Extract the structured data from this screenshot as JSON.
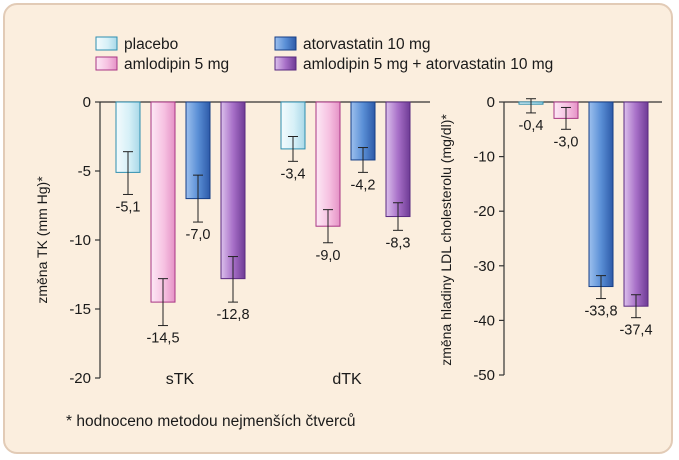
{
  "legend": [
    {
      "name": "placebo",
      "fill": "#d9f2f8",
      "edge": "#2d8fb0"
    },
    {
      "name": "atorvastatin 10 mg",
      "fill": "#5b8fd8",
      "edge": "#163f87"
    },
    {
      "name": "amlodipin 5 mg",
      "fill": "#f7c4e4",
      "edge": "#a83584"
    },
    {
      "name": "amlodipin 5 mg + atorvastatin 10 mg",
      "fill": "#a870c8",
      "edge": "#5a2a80"
    }
  ],
  "footnote": "* hodnoceno metodou nejmenších čtverců",
  "chart_data": [
    {
      "type": "bar",
      "ylabel": "změna TK (mm Hg)*",
      "ylim": [
        -20,
        0
      ],
      "yticks": [
        "0",
        "-5",
        "-10",
        "-15",
        "-20"
      ],
      "categories": [
        "sTK",
        "dTK"
      ],
      "series": [
        {
          "name": "placebo",
          "values": [
            -5.1,
            -3.4
          ],
          "labels": [
            "-5,1",
            "-3,4"
          ],
          "err_low": [
            -6.7,
            -4.3
          ],
          "err_high": [
            -3.6,
            -2.5
          ]
        },
        {
          "name": "amlodipin 5 mg",
          "values": [
            -14.5,
            -9.0
          ],
          "labels": [
            "-14,5",
            "-9,0"
          ],
          "err_low": [
            -16.2,
            -10.2
          ],
          "err_high": [
            -12.8,
            -7.8
          ]
        },
        {
          "name": "atorvastatin 10 mg",
          "values": [
            -7.0,
            -4.2
          ],
          "labels": [
            "-7,0",
            "-4,2"
          ],
          "err_low": [
            -8.7,
            -5.1
          ],
          "err_high": [
            -5.3,
            -3.3
          ]
        },
        {
          "name": "amlodipin 5 mg + atorvastatin 10 mg",
          "values": [
            -12.8,
            -8.3
          ],
          "labels": [
            "-12,8",
            "-8,3"
          ],
          "err_low": [
            -14.5,
            -9.3
          ],
          "err_high": [
            -11.2,
            -7.3
          ]
        }
      ]
    },
    {
      "type": "bar",
      "ylabel": "změna hladiny LDL cholesterolu (mg/dl)*",
      "ylim": [
        -50,
        0
      ],
      "yticks": [
        "0",
        "-10",
        "-20",
        "-30",
        "-40",
        "-50"
      ],
      "categories": [
        ""
      ],
      "series": [
        {
          "name": "placebo",
          "values": [
            -0.4
          ],
          "labels": [
            "-0,4"
          ],
          "err_low": [
            -2.0
          ],
          "err_high": [
            0.6
          ]
        },
        {
          "name": "amlodipin 5 mg",
          "values": [
            -3.0
          ],
          "labels": [
            "-3,0"
          ],
          "err_low": [
            -5.0
          ],
          "err_high": [
            -1.0
          ]
        },
        {
          "name": "atorvastatin 10 mg",
          "values": [
            -33.8
          ],
          "labels": [
            "-33,8"
          ],
          "err_low": [
            -36.0
          ],
          "err_high": [
            -31.8
          ]
        },
        {
          "name": "amlodipin 5 mg + atorvastatin 10 mg",
          "values": [
            -37.4
          ],
          "labels": [
            "-37,4"
          ],
          "err_low": [
            -39.5
          ],
          "err_high": [
            -35.3
          ]
        }
      ]
    }
  ]
}
